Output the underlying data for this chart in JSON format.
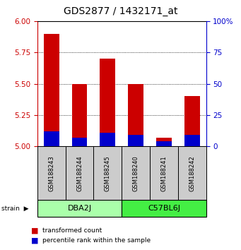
{
  "title": "GDS2877 / 1432171_at",
  "samples": [
    "GSM188243",
    "GSM188244",
    "GSM188245",
    "GSM188240",
    "GSM188241",
    "GSM188242"
  ],
  "red_values": [
    5.9,
    5.5,
    5.7,
    5.5,
    5.07,
    5.4
  ],
  "blue_values": [
    5.12,
    5.07,
    5.11,
    5.09,
    5.04,
    5.09
  ],
  "ylim": [
    5.0,
    6.0
  ],
  "yticks_left": [
    5.0,
    5.25,
    5.5,
    5.75,
    6.0
  ],
  "yticks_right": [
    0,
    25,
    50,
    75,
    100
  ],
  "groups": [
    {
      "label": "DBA2J",
      "indices": [
        0,
        1,
        2
      ],
      "color": "#aaffaa"
    },
    {
      "label": "C57BL6J",
      "indices": [
        3,
        4,
        5
      ],
      "color": "#44ee44"
    }
  ],
  "bar_width": 0.55,
  "red_color": "#cc0000",
  "blue_color": "#0000cc",
  "left_axis_color": "#cc0000",
  "right_axis_color": "#0000cc",
  "bg_color": "#ffffff",
  "plot_bg_color": "#ffffff",
  "tick_label_box_color": "#cccccc",
  "legend_red": "transformed count",
  "legend_blue": "percentile rank within the sample",
  "title_fontsize": 10
}
